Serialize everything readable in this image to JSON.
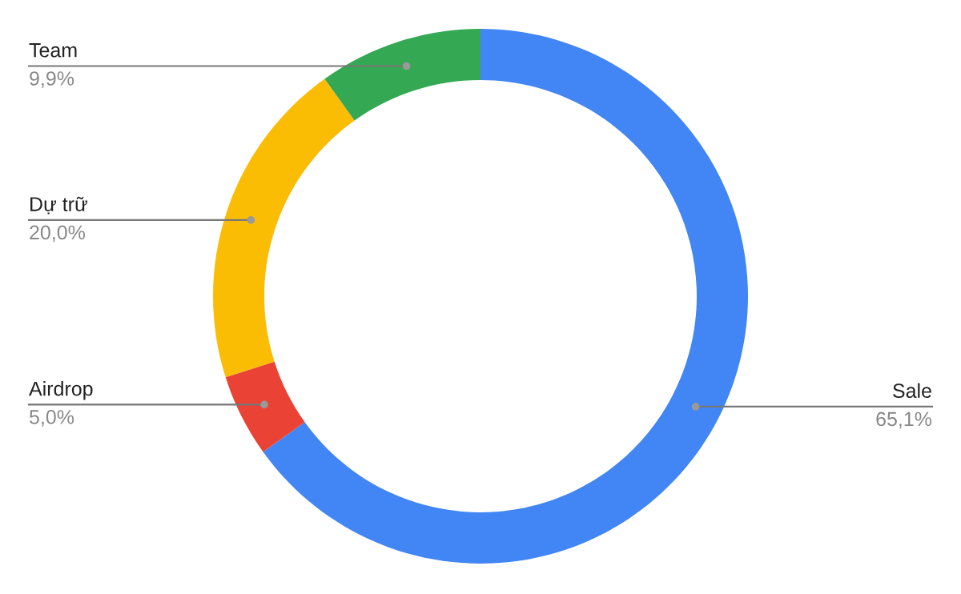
{
  "chart_data": {
    "type": "donut",
    "categories": [
      "Sale",
      "Airdrop",
      "Dự trữ",
      "Team"
    ],
    "values": [
      65.1,
      5.0,
      20.0,
      9.9
    ],
    "colors": [
      "#4285f4",
      "#ea4335",
      "#fbbc04",
      "#34a853"
    ],
    "value_labels": [
      "65,1%",
      "5,0%",
      "20,0%",
      "9,9%"
    ],
    "legend": false
  }
}
